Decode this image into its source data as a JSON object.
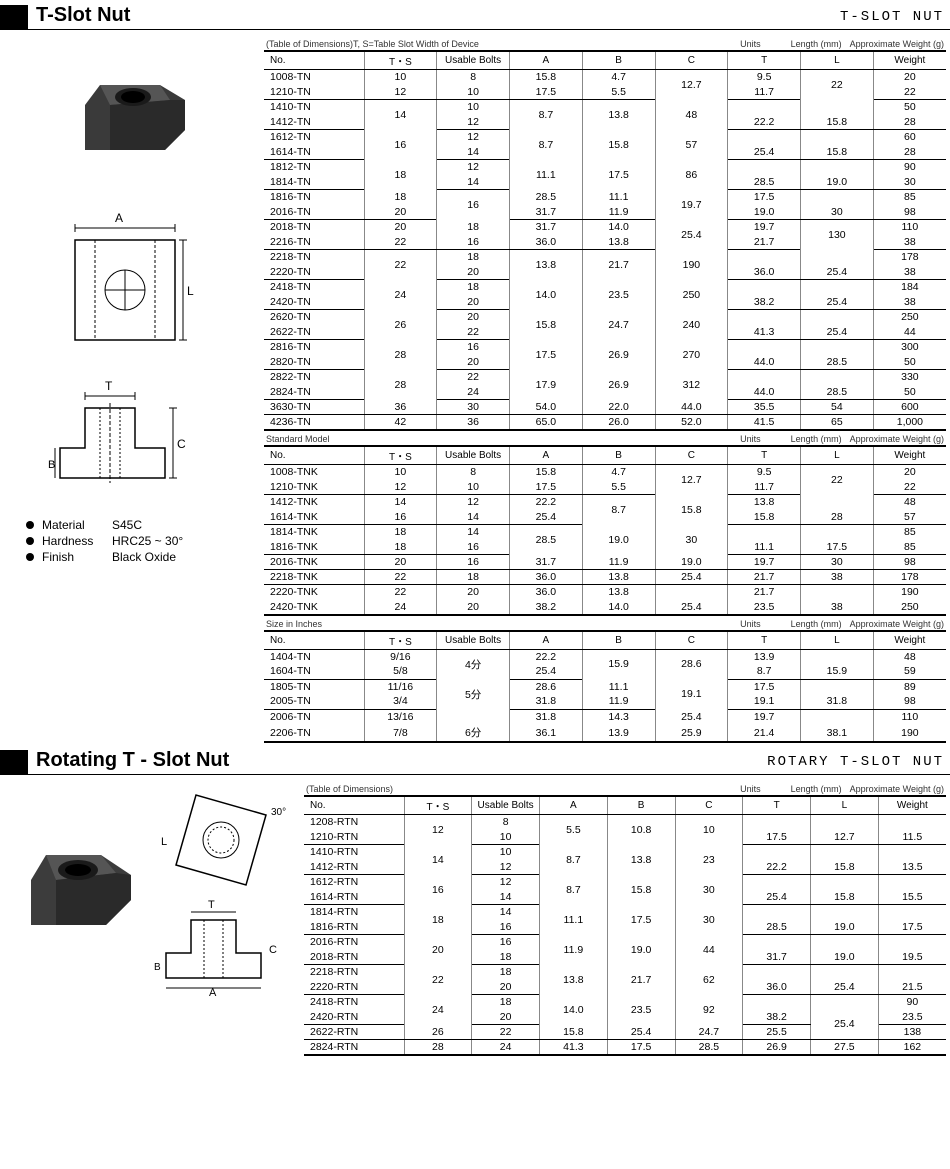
{
  "tslot": {
    "title": "T-Slot Nut",
    "right_label": "T-SLOT NUT",
    "caption_left": "(Table of Dimensions)",
    "caption_mid": "T, S=Table Slot Width of Device",
    "caption_units": "Units",
    "caption_len": "Length (mm)",
    "caption_wt": "Approximate Weight (g)",
    "headers": [
      "No.",
      "T・S",
      "Usable Bolts",
      "A",
      "B",
      "C",
      "T",
      "L",
      "Weight"
    ],
    "specs": {
      "material_lbl": "Material",
      "material": "S45C",
      "hardness_lbl": "Hardness",
      "hardness": "HRC25 ~ 30°",
      "finish_lbl": "Finish",
      "finish": "Black Oxide"
    },
    "table1": [
      [
        "1008-TN",
        "10",
        "8",
        "15.8",
        "4.7",
        "",
        "9.5",
        "",
        "20"
      ],
      [
        "1210-TN",
        "12",
        "10",
        "17.5",
        "5.5",
        "12.7",
        "11.7",
        "22",
        "22",
        "sep"
      ],
      [
        "1410-TN",
        "",
        "10",
        "",
        "",
        "",
        "",
        "",
        "50"
      ],
      [
        "1412-TN",
        "14",
        "12",
        "22.2",
        "8.7",
        "15.8",
        "13.8",
        "28",
        "48",
        "sep"
      ],
      [
        "1612-TN",
        "",
        "12",
        "",
        "",
        "",
        "",
        "",
        "60"
      ],
      [
        "1614-TN",
        "16",
        "14",
        "25.4",
        "8.7",
        "15.8",
        "15.8",
        "28",
        "57",
        "sep"
      ],
      [
        "1812-TN",
        "",
        "12",
        "",
        "",
        "",
        "",
        "",
        "90"
      ],
      [
        "1814-TN",
        "18",
        "14",
        "28.5",
        "11.1",
        "19.0",
        "17.5",
        "30",
        "86",
        "sep"
      ],
      [
        "1816-TN",
        "18",
        "",
        "28.5",
        "11.1",
        "",
        "17.5",
        "",
        "85"
      ],
      [
        "2016-TN",
        "20",
        "16",
        "31.7",
        "11.9",
        "19.0",
        "19.7",
        "30",
        "98",
        "sep"
      ],
      [
        "2018-TN",
        "20",
        "18",
        "31.7",
        "14.0",
        "",
        "19.7",
        "",
        "110"
      ],
      [
        "2216-TN",
        "22",
        "16",
        "36.0",
        "13.8",
        "25.4",
        "21.7",
        "38",
        "130",
        "sep"
      ],
      [
        "2218-TN",
        "",
        "18",
        "",
        "",
        "",
        "",
        "",
        "178"
      ],
      [
        "2220-TN",
        "22",
        "20",
        "36.0",
        "13.8",
        "25.4",
        "21.7",
        "38",
        "190",
        "sep"
      ],
      [
        "2418-TN",
        "",
        "18",
        "",
        "",
        "",
        "",
        "",
        "184"
      ],
      [
        "2420-TN",
        "24",
        "20",
        "38.2",
        "14.0",
        "25.4",
        "23.5",
        "38",
        "250",
        "sep"
      ],
      [
        "2620-TN",
        "",
        "20",
        "",
        "",
        "",
        "",
        "",
        "250"
      ],
      [
        "2622-TN",
        "26",
        "22",
        "41.3",
        "15.8",
        "25.4",
        "24.7",
        "44",
        "240",
        "sep"
      ],
      [
        "2816-TN",
        "",
        "16",
        "",
        "",
        "",
        "",
        "",
        "300"
      ],
      [
        "2820-TN",
        "28",
        "20",
        "44.0",
        "17.5",
        "28.5",
        "26.9",
        "50",
        "270",
        "sep"
      ],
      [
        "2822-TN",
        "",
        "22",
        "",
        "",
        "",
        "",
        "",
        "330"
      ],
      [
        "2824-TN",
        "28",
        "24",
        "44.0",
        "17.9",
        "28.5",
        "26.9",
        "50",
        "312",
        "sep"
      ],
      [
        "3630-TN",
        "36",
        "30",
        "54.0",
        "22.0",
        "44.0",
        "35.5",
        "54",
        "600",
        "sep"
      ],
      [
        "4236-TN",
        "42",
        "36",
        "65.0",
        "26.0",
        "52.0",
        "41.5",
        "65",
        "1,000"
      ]
    ],
    "sub2": "Standard Model",
    "table2": [
      [
        "1008-TNK",
        "10",
        "8",
        "15.8",
        "4.7",
        "",
        "9.5",
        "",
        "20"
      ],
      [
        "1210-TNK",
        "12",
        "10",
        "17.5",
        "5.5",
        "12.7",
        "11.7",
        "22",
        "22",
        "sep"
      ],
      [
        "1412-TNK",
        "14",
        "12",
        "22.2",
        "",
        "",
        "13.8",
        "",
        "48"
      ],
      [
        "1614-TNK",
        "16",
        "14",
        "25.4",
        "8.7",
        "15.8",
        "15.8",
        "28",
        "57",
        "sep"
      ],
      [
        "1814-TNK",
        "18",
        "14",
        "",
        "",
        "",
        "",
        "",
        "85"
      ],
      [
        "1816-TNK",
        "18",
        "16",
        "28.5",
        "11.1",
        "19.0",
        "17.5",
        "30",
        "85",
        "sep"
      ],
      [
        "2016-TNK",
        "20",
        "16",
        "31.7",
        "11.9",
        "19.0",
        "19.7",
        "30",
        "98",
        "sep"
      ],
      [
        "2218-TNK",
        "22",
        "18",
        "36.0",
        "13.8",
        "25.4",
        "21.7",
        "38",
        "178",
        "sep"
      ],
      [
        "2220-TNK",
        "22",
        "20",
        "36.0",
        "13.8",
        "",
        "21.7",
        "",
        "190"
      ],
      [
        "2420-TNK",
        "24",
        "20",
        "38.2",
        "14.0",
        "25.4",
        "23.5",
        "38",
        "250"
      ]
    ],
    "sub3": "Size in Inches",
    "table3": [
      [
        "1404-TN",
        "9/16",
        "",
        "22.2",
        "",
        "",
        "13.9",
        "",
        "48"
      ],
      [
        "1604-TN",
        "5/8",
        "4分",
        "25.4",
        "8.7",
        "15.9",
        "15.9",
        "28.6",
        "59",
        "sep"
      ],
      [
        "1805-TN",
        "11/16",
        "",
        "28.6",
        "11.1",
        "",
        "17.5",
        "",
        "89"
      ],
      [
        "2005-TN",
        "3/4",
        "5分",
        "31.8",
        "11.9",
        "19.1",
        "19.1",
        "31.8",
        "98",
        "sep"
      ],
      [
        "2006-TN",
        "13/16",
        "",
        "31.8",
        "14.3",
        "25.4",
        "19.7",
        "",
        "110"
      ],
      [
        "2206-TN",
        "7/8",
        "6分",
        "36.1",
        "13.9",
        "25.9",
        "21.4",
        "38.1",
        "190"
      ]
    ]
  },
  "rotary": {
    "title": "Rotating T - Slot Nut",
    "right_label": "ROTARY T-SLOT NUT",
    "caption_left": "(Table of Dimensions)",
    "caption_units": "Units",
    "caption_len": "Length (mm)",
    "caption_wt": "Approximate Weight (g)",
    "headers": [
      "No.",
      "T・S",
      "Usable Bolts",
      "A",
      "B",
      "C",
      "T",
      "L",
      "Weight"
    ],
    "table": [
      [
        "1208-RTN",
        "",
        "8",
        "",
        "",
        "",
        "",
        "",
        ""
      ],
      [
        "1210-RTN",
        "12",
        "10",
        "17.5",
        "5.5",
        "12.7",
        "10.8",
        "11.5",
        "10",
        "sep"
      ],
      [
        "1410-RTN",
        "",
        "10",
        "",
        "",
        "",
        "",
        "",
        ""
      ],
      [
        "1412-RTN",
        "14",
        "12",
        "22.2",
        "8.7",
        "15.8",
        "13.8",
        "13.5",
        "23",
        "sep"
      ],
      [
        "1612-RTN",
        "",
        "12",
        "",
        "",
        "",
        "",
        "",
        ""
      ],
      [
        "1614-RTN",
        "16",
        "14",
        "25.4",
        "8.7",
        "15.8",
        "15.8",
        "15.5",
        "30",
        "sep"
      ],
      [
        "1814-RTN",
        "",
        "14",
        "",
        "",
        "",
        "",
        "",
        ""
      ],
      [
        "1816-RTN",
        "18",
        "16",
        "28.5",
        "11.1",
        "19.0",
        "17.5",
        "17.5",
        "30",
        "sep"
      ],
      [
        "2016-RTN",
        "",
        "16",
        "",
        "",
        "",
        "",
        "",
        ""
      ],
      [
        "2018-RTN",
        "20",
        "18",
        "31.7",
        "11.9",
        "19.0",
        "19.0",
        "19.5",
        "44",
        "sep"
      ],
      [
        "2218-RTN",
        "",
        "18",
        "",
        "",
        "",
        "",
        "",
        ""
      ],
      [
        "2220-RTN",
        "22",
        "20",
        "36.0",
        "13.8",
        "25.4",
        "21.7",
        "21.5",
        "62",
        "sep"
      ],
      [
        "2418-RTN",
        "",
        "18",
        "",
        "",
        "",
        "",
        "",
        "90"
      ],
      [
        "2420-RTN",
        "24",
        "20",
        "38.2",
        "14.0",
        "25.4",
        "23.5",
        "23.5",
        "92",
        "sep"
      ],
      [
        "2622-RTN",
        "26",
        "22",
        "",
        "15.8",
        "25.4",
        "24.7",
        "25.5",
        "138",
        "sep"
      ],
      [
        "2824-RTN",
        "28",
        "24",
        "41.3",
        "17.5",
        "28.5",
        "26.9",
        "27.5",
        "162"
      ]
    ]
  }
}
